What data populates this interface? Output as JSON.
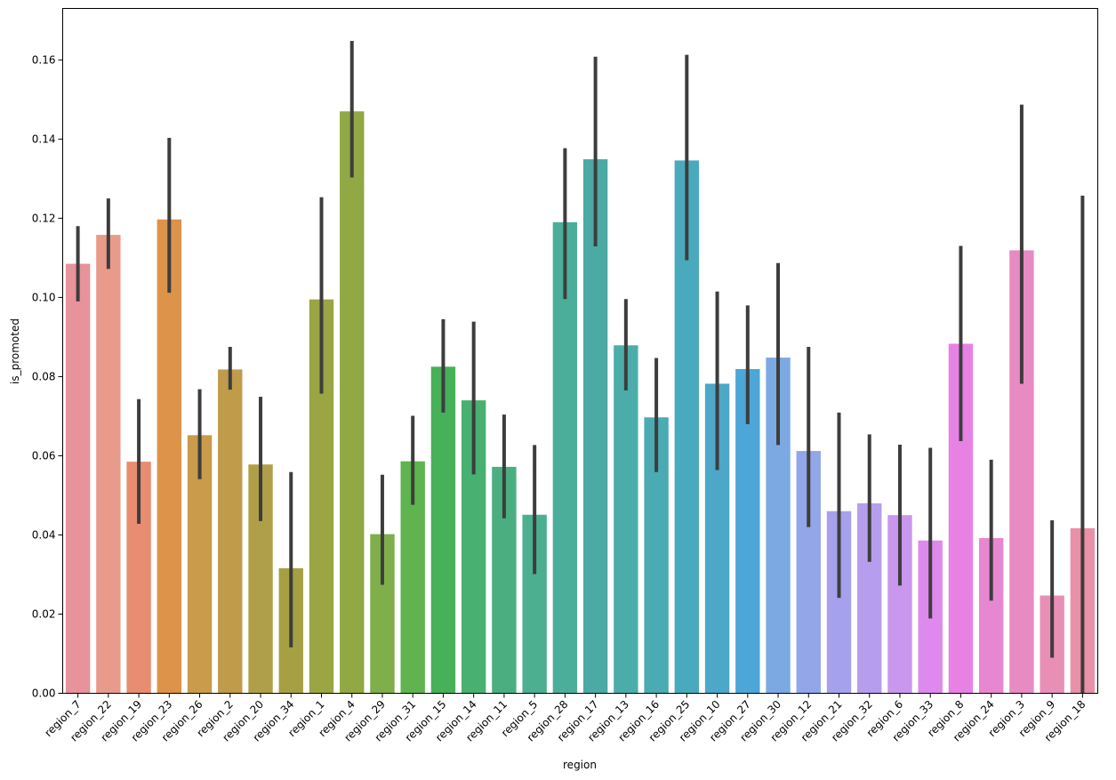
{
  "chart_data": {
    "type": "bar",
    "title": "",
    "xlabel": "region",
    "ylabel": "is_promoted",
    "ylim": [
      0,
      0.173
    ],
    "yticks": [
      "0.00",
      "0.02",
      "0.04",
      "0.06",
      "0.08",
      "0.10",
      "0.12",
      "0.14",
      "0.16"
    ],
    "ytick_values": [
      0,
      0.02,
      0.04,
      0.06,
      0.08,
      0.1,
      0.12,
      0.14,
      0.16
    ],
    "categories": [
      "region_7",
      "region_22",
      "region_19",
      "region_23",
      "region_26",
      "region_2",
      "region_20",
      "region_34",
      "region_1",
      "region_4",
      "region_29",
      "region_31",
      "region_15",
      "region_14",
      "region_11",
      "region_5",
      "region_28",
      "region_17",
      "region_13",
      "region_16",
      "region_25",
      "region_10",
      "region_27",
      "region_30",
      "region_12",
      "region_21",
      "region_32",
      "region_6",
      "region_33",
      "region_8",
      "region_24",
      "region_3",
      "region_9",
      "region_18"
    ],
    "values": [
      0.1085,
      0.1158,
      0.0585,
      0.1197,
      0.0652,
      0.0818,
      0.0578,
      0.0316,
      0.0995,
      0.147,
      0.0402,
      0.0586,
      0.0825,
      0.074,
      0.0572,
      0.0451,
      0.119,
      0.1349,
      0.0879,
      0.0697,
      0.1346,
      0.0782,
      0.0819,
      0.0848,
      0.0612,
      0.046,
      0.048,
      0.045,
      0.0386,
      0.0883,
      0.0392,
      0.1119,
      0.0247,
      0.0417
    ],
    "ci_low": [
      0.099,
      0.1072,
      0.0428,
      0.1012,
      0.0541,
      0.0767,
      0.0435,
      0.0116,
      0.0757,
      0.1303,
      0.0274,
      0.0476,
      0.0709,
      0.0553,
      0.0442,
      0.0301,
      0.0996,
      0.1129,
      0.0765,
      0.0559,
      0.1094,
      0.0564,
      0.068,
      0.0627,
      0.042,
      0.0241,
      0.0332,
      0.0272,
      0.0189,
      0.0637,
      0.0234,
      0.0782,
      0.009,
      0.0
    ],
    "ci_high": [
      0.118,
      0.125,
      0.0743,
      0.1403,
      0.0768,
      0.0875,
      0.0749,
      0.0559,
      0.1253,
      0.1648,
      0.0552,
      0.0701,
      0.0945,
      0.0939,
      0.0704,
      0.0627,
      0.1377,
      0.1608,
      0.0996,
      0.0847,
      0.1613,
      0.1015,
      0.098,
      0.1087,
      0.0875,
      0.0709,
      0.0654,
      0.0628,
      0.062,
      0.113,
      0.059,
      0.1487,
      0.0437,
      0.1257
    ],
    "colors": [
      "#e8929b",
      "#e89b8b",
      "#e88d71",
      "#dd934a",
      "#c99b4b",
      "#bf9b4a",
      "#b09f49",
      "#a6a044",
      "#9ba543",
      "#91a844",
      "#7fae4b",
      "#5fb44f",
      "#46b158",
      "#48b071",
      "#4bae80",
      "#4baf90",
      "#4bae9b",
      "#4baaa3",
      "#4badaa",
      "#4aabb2",
      "#4aaabd",
      "#4ca7c8",
      "#4ca6d8",
      "#7ca9e2",
      "#92a6e8",
      "#a6a1ec",
      "#b79ded",
      "#c997ee",
      "#dd89ee",
      "#e782e4",
      "#e787d1",
      "#e78bc2",
      "#e88fb6",
      "#e891a8"
    ]
  }
}
